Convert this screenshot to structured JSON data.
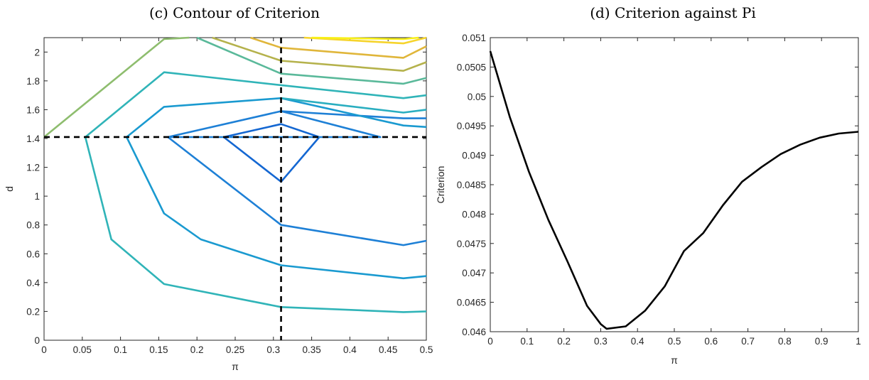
{
  "chart_data": [
    {
      "type": "contour",
      "title": "(c) Contour of Criterion",
      "xlabel": "π",
      "ylabel": "d",
      "xlim": [
        0,
        0.5
      ],
      "ylim": [
        0,
        2.1
      ],
      "xticks": [
        0,
        0.05,
        0.1,
        0.15,
        0.2,
        0.25,
        0.3,
        0.35,
        0.4,
        0.45,
        0.5
      ],
      "xtick_labels": [
        "0",
        "0.05",
        "0.1",
        "0.15",
        "0.2",
        "0.25",
        "0.3",
        "0.35",
        "0.4",
        "0.45",
        "0.5"
      ],
      "yticks": [
        0,
        0.2,
        0.4,
        0.6,
        0.8,
        1,
        1.2,
        1.4,
        1.6,
        1.8,
        2
      ],
      "ytick_labels": [
        "0",
        "0.2",
        "0.4",
        "0.6",
        "0.8",
        "1",
        "1.2",
        "1.4",
        "1.6",
        "1.8",
        "2"
      ],
      "grid": false,
      "crosshair": {
        "x": 0.31,
        "y": 1.41,
        "color": "#000000"
      },
      "contours": [
        {
          "color": "#1467d2",
          "points": [
            [
              0.235,
              1.41
            ],
            [
              0.31,
              1.5
            ],
            [
              0.36,
              1.41
            ],
            [
              0.31,
              1.1
            ],
            [
              0.235,
              1.41
            ]
          ]
        },
        {
          "color": "#1e80d6",
          "points": [
            [
              0.162,
              1.41
            ],
            [
              0.31,
              1.59
            ],
            [
              0.47,
              1.54
            ],
            [
              0.5,
              1.54
            ]
          ]
        },
        {
          "color": "#1e80d6",
          "points": [
            [
              0.162,
              1.41
            ],
            [
              0.31,
              1.41
            ],
            [
              0.44,
              1.41
            ],
            [
              0.31,
              1.59
            ]
          ]
        },
        {
          "color": "#1e80d6",
          "points": [
            [
              0.162,
              1.41
            ],
            [
              0.31,
              0.8
            ],
            [
              0.47,
              0.66
            ],
            [
              0.5,
              0.69
            ]
          ]
        },
        {
          "color": "#1a9ad0",
          "points": [
            [
              0.5,
              1.48
            ],
            [
              0.47,
              1.49
            ],
            [
              0.31,
              1.68
            ],
            [
              0.157,
              1.62
            ],
            [
              0.108,
              1.41
            ],
            [
              0.157,
              0.88
            ],
            [
              0.205,
              0.7
            ],
            [
              0.31,
              0.52
            ],
            [
              0.47,
              0.43
            ],
            [
              0.5,
              0.445
            ]
          ]
        },
        {
          "color": "#2aaec0",
          "points": [
            [
              0.5,
              1.6
            ],
            [
              0.47,
              1.58
            ],
            [
              0.31,
              1.68
            ]
          ]
        },
        {
          "color": "#30b4b8",
          "points": [
            [
              0.5,
              1.7
            ],
            [
              0.47,
              1.68
            ],
            [
              0.31,
              1.77
            ],
            [
              0.157,
              1.86
            ],
            [
              0.054,
              1.41
            ],
            [
              0.088,
              0.7
            ],
            [
              0.157,
              0.39
            ],
            [
              0.31,
              0.23
            ],
            [
              0.47,
              0.195
            ],
            [
              0.5,
              0.2
            ]
          ]
        },
        {
          "color": "#5ab99a",
          "points": [
            [
              0.5,
              1.82
            ],
            [
              0.47,
              1.78
            ],
            [
              0.31,
              1.85
            ],
            [
              0.2,
              2.1
            ]
          ]
        },
        {
          "color": "#8ebd6e",
          "points": [
            [
              0.0,
              1.41
            ],
            [
              0.157,
              2.09
            ],
            [
              0.19,
              2.1
            ]
          ]
        },
        {
          "color": "#b5b24c",
          "points": [
            [
              0.5,
              1.93
            ],
            [
              0.47,
              1.87
            ],
            [
              0.31,
              1.94
            ],
            [
              0.22,
              2.1
            ]
          ]
        },
        {
          "color": "#e0b63a",
          "points": [
            [
              0.5,
              2.04
            ],
            [
              0.47,
              1.96
            ],
            [
              0.31,
              2.03
            ],
            [
              0.27,
              2.1
            ]
          ]
        },
        {
          "color": "#f6d42c",
          "points": [
            [
              0.5,
              2.1
            ],
            [
              0.47,
              2.06
            ],
            [
              0.34,
              2.1
            ]
          ]
        },
        {
          "color": "#f8f016",
          "points": [
            [
              0.49,
              2.12
            ],
            [
              0.47,
              2.09
            ],
            [
              0.35,
              2.11
            ]
          ]
        }
      ]
    },
    {
      "type": "line",
      "title": "(d) Criterion against Pi",
      "xlabel": "π",
      "ylabel": "Criterion",
      "xlim": [
        0,
        1
      ],
      "ylim": [
        0.046,
        0.051
      ],
      "xticks": [
        0,
        0.1,
        0.2,
        0.3,
        0.4,
        0.5,
        0.6,
        0.7,
        0.8,
        0.9,
        1
      ],
      "xtick_labels": [
        "0",
        "0.1",
        "0.2",
        "0.3",
        "0.4",
        "0.5",
        "0.6",
        "0.7",
        "0.8",
        "0.9",
        "1"
      ],
      "yticks": [
        0.046,
        0.0465,
        0.047,
        0.0475,
        0.048,
        0.0485,
        0.049,
        0.0495,
        0.05,
        0.0505,
        0.051
      ],
      "ytick_labels": [
        "0.046",
        "0.0465",
        "0.047",
        "0.0475",
        "0.048",
        "0.0485",
        "0.049",
        "0.0495",
        "0.05",
        "0.0505",
        "0.051"
      ],
      "grid": false,
      "series": [
        {
          "color": "#000000",
          "x": [
            0,
            0.053,
            0.105,
            0.158,
            0.21,
            0.263,
            0.3,
            0.316,
            0.368,
            0.421,
            0.474,
            0.526,
            0.579,
            0.632,
            0.684,
            0.737,
            0.789,
            0.842,
            0.895,
            0.947,
            1.0
          ],
          "values": [
            0.05077,
            0.04965,
            0.04872,
            0.0479,
            0.04719,
            0.04644,
            0.04613,
            0.04605,
            0.04609,
            0.04636,
            0.04677,
            0.04737,
            0.04768,
            0.04815,
            0.04855,
            0.0488,
            0.04902,
            0.04918,
            0.0493,
            0.04937,
            0.0494
          ]
        }
      ]
    }
  ]
}
